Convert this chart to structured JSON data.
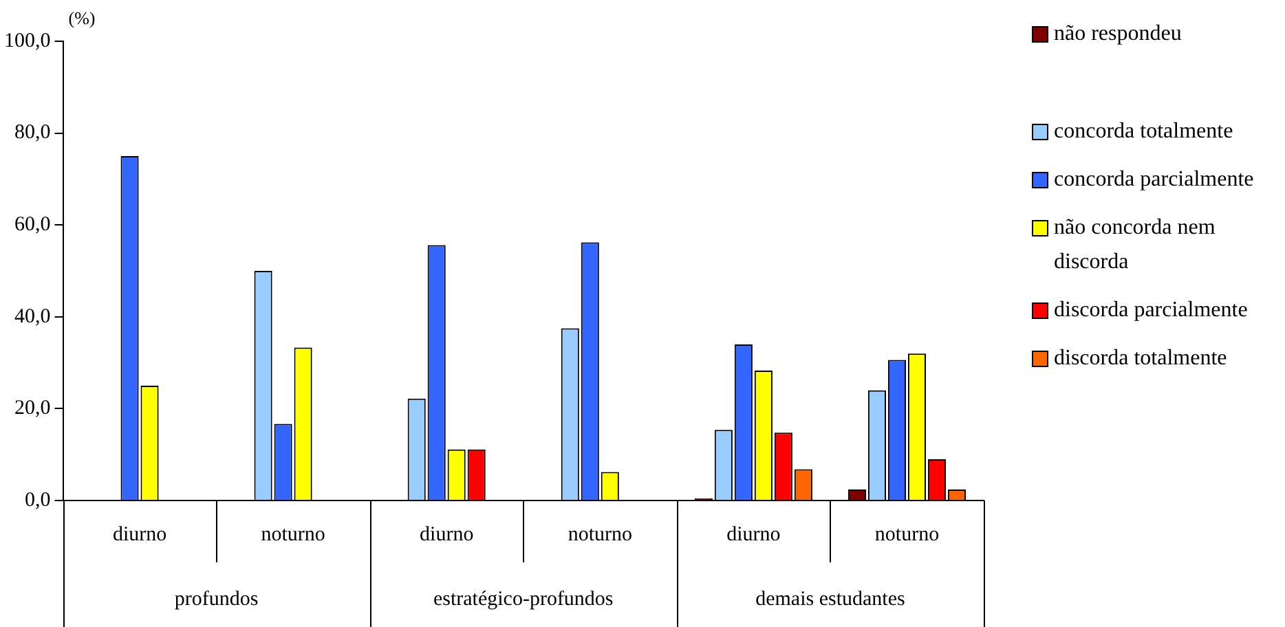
{
  "chart_data": {
    "type": "bar",
    "ylabel": "(%)",
    "categories": [
      "diurno",
      "noturno",
      "diurno",
      "noturno",
      "diurno",
      "noturno"
    ],
    "annotations": [
      "profundos",
      "estratégico-profundos",
      "demais estudantes"
    ],
    "series": [
      {
        "name": "não respondeu",
        "color": "#800000",
        "values": [
          null,
          null,
          null,
          null,
          0.5,
          2.4
        ]
      },
      {
        "name": "concorda totalmente",
        "color": "#99ccff",
        "values": [
          null,
          50,
          22.2,
          37.5,
          15.4,
          24
        ]
      },
      {
        "name": "concorda parcialmente",
        "color": "#3366ff",
        "values": [
          75,
          16.7,
          55.6,
          56.2,
          34,
          30.6
        ]
      },
      {
        "name": "não concorda nem discorda",
        "color": "#ffff00",
        "values": [
          25,
          33.3,
          11.1,
          6.2,
          28.3,
          32
        ]
      },
      {
        "name": "discorda parcialmente",
        "color": "#ff0000",
        "values": [
          null,
          null,
          11.1,
          null,
          14.8,
          9
        ]
      },
      {
        "name": "discorda totalmente",
        "color": "#ff6600",
        "values": [
          null,
          null,
          null,
          null,
          6.8,
          2.4
        ]
      }
    ],
    "ylim": [
      0,
      100
    ],
    "yticks": [
      {
        "value": 0,
        "label": "0,0"
      },
      {
        "value": 20,
        "label": "20,0"
      },
      {
        "value": 40,
        "label": "40,0"
      },
      {
        "value": 60,
        "label": "60,0"
      },
      {
        "value": 80,
        "label": "80,0"
      },
      {
        "value": 100,
        "label": "100,0"
      }
    ],
    "grid": false,
    "legend": "right"
  }
}
